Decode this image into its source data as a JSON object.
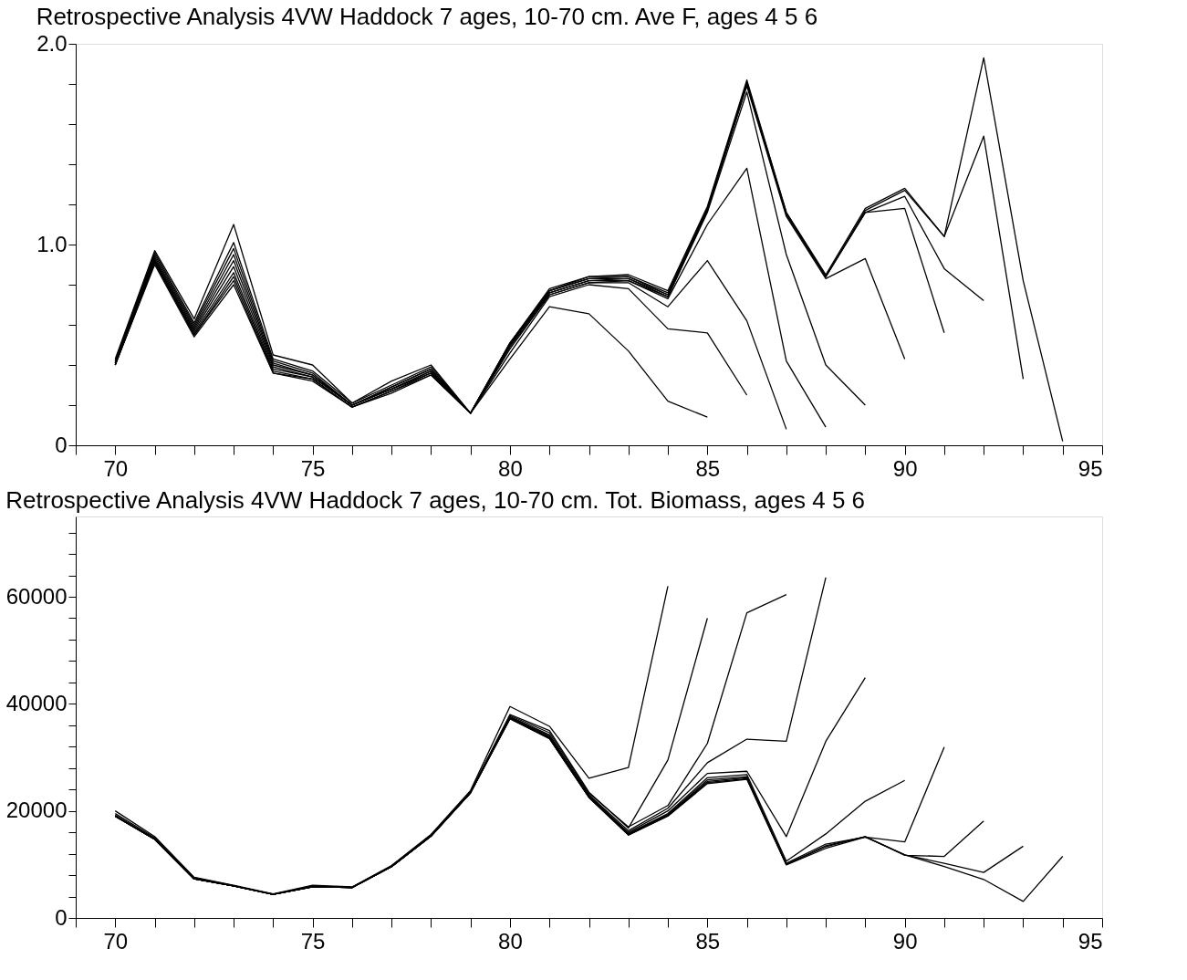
{
  "chart_data": [
    {
      "type": "line",
      "title": "Retrospective Analysis 4VW Haddock 7 ages, 10-70 cm. Ave F, ages 4 5 6",
      "x": [
        70,
        71,
        72,
        73,
        74,
        75,
        76,
        77,
        78,
        79,
        80,
        81,
        82,
        83,
        84,
        85,
        86,
        87,
        88,
        89,
        90,
        91,
        92,
        93,
        94
      ],
      "series": [
        {
          "color": "#000000",
          "values": [
            0.43,
            0.97,
            0.63,
            1.1,
            0.45,
            0.4,
            0.21,
            0.32,
            0.4,
            0.16,
            0.43,
            0.69,
            0.655,
            0.47,
            0.22,
            0.14,
            null,
            null,
            null,
            null,
            null,
            null,
            null,
            null,
            null
          ]
        },
        {
          "color": "#000000",
          "values": [
            0.42,
            0.96,
            0.61,
            1.01,
            0.43,
            0.37,
            0.21,
            0.3,
            0.39,
            0.16,
            0.46,
            0.74,
            0.8,
            0.78,
            0.58,
            0.56,
            0.25,
            null,
            null,
            null,
            null,
            null,
            null,
            null,
            null
          ]
        },
        {
          "color": "#000000",
          "values": [
            0.42,
            0.95,
            0.6,
            0.98,
            0.42,
            0.36,
            0.2,
            0.29,
            0.38,
            0.16,
            0.48,
            0.75,
            0.81,
            0.81,
            0.69,
            0.92,
            0.62,
            0.08,
            null,
            null,
            null,
            null,
            null,
            null,
            null
          ]
        },
        {
          "color": "#000000",
          "values": [
            0.41,
            0.94,
            0.59,
            0.95,
            0.41,
            0.35,
            0.2,
            0.29,
            0.38,
            0.16,
            0.49,
            0.75,
            0.81,
            0.82,
            0.73,
            1.1,
            1.38,
            0.42,
            0.09,
            null,
            null,
            null,
            null,
            null,
            null
          ]
        },
        {
          "color": "#000000",
          "values": [
            0.41,
            0.93,
            0.58,
            0.92,
            0.4,
            0.35,
            0.2,
            0.28,
            0.37,
            0.16,
            0.5,
            0.76,
            0.82,
            0.82,
            0.74,
            1.16,
            1.76,
            0.95,
            0.4,
            0.2,
            null,
            null,
            null,
            null,
            null
          ]
        },
        {
          "color": "#000000",
          "values": [
            0.41,
            0.92,
            0.57,
            0.89,
            0.39,
            0.34,
            0.2,
            0.28,
            0.37,
            0.16,
            0.5,
            0.76,
            0.82,
            0.83,
            0.74,
            1.17,
            1.79,
            1.14,
            0.83,
            0.93,
            0.43,
            null,
            null,
            null,
            null
          ]
        },
        {
          "color": "#000000",
          "values": [
            0.4,
            0.92,
            0.56,
            0.86,
            0.38,
            0.34,
            0.2,
            0.28,
            0.36,
            0.16,
            0.5,
            0.77,
            0.83,
            0.83,
            0.75,
            1.17,
            1.8,
            1.15,
            0.84,
            1.16,
            1.18,
            0.56,
            null,
            null,
            null
          ]
        },
        {
          "color": "#000000",
          "values": [
            0.4,
            0.91,
            0.55,
            0.84,
            0.37,
            0.33,
            0.19,
            0.27,
            0.36,
            0.16,
            0.51,
            0.77,
            0.83,
            0.84,
            0.75,
            1.18,
            1.8,
            1.15,
            0.84,
            1.16,
            1.24,
            0.88,
            0.72,
            null,
            null
          ]
        },
        {
          "color": "#000000",
          "values": [
            0.4,
            0.91,
            0.55,
            0.82,
            0.36,
            0.33,
            0.19,
            0.27,
            0.35,
            0.16,
            0.51,
            0.77,
            0.84,
            0.84,
            0.76,
            1.18,
            1.81,
            1.16,
            0.84,
            1.17,
            1.27,
            1.04,
            1.54,
            0.33,
            null
          ]
        },
        {
          "color": "#000000",
          "values": [
            0.4,
            0.9,
            0.54,
            0.8,
            0.36,
            0.32,
            0.19,
            0.26,
            0.35,
            0.16,
            0.51,
            0.78,
            0.84,
            0.85,
            0.77,
            1.19,
            1.82,
            1.16,
            0.85,
            1.18,
            1.28,
            1.04,
            1.93,
            0.82,
            0.02
          ]
        }
      ],
      "xlim": [
        69,
        95
      ],
      "xticks": [
        {
          "value": 69,
          "label": null
        },
        70,
        {
          "value": 71,
          "label": null
        },
        {
          "value": 72,
          "label": null
        },
        {
          "value": 73,
          "label": null
        },
        {
          "value": 74,
          "label": null
        },
        75,
        {
          "value": 76,
          "label": null
        },
        {
          "value": 77,
          "label": null
        },
        {
          "value": 78,
          "label": null
        },
        {
          "value": 79,
          "label": null
        },
        80,
        {
          "value": 81,
          "label": null
        },
        {
          "value": 82,
          "label": null
        },
        {
          "value": 83,
          "label": null
        },
        {
          "value": 84,
          "label": null
        },
        85,
        {
          "value": 86,
          "label": null
        },
        {
          "value": 87,
          "label": null
        },
        {
          "value": 88,
          "label": null
        },
        {
          "value": 89,
          "label": null
        },
        90,
        {
          "value": 91,
          "label": null
        },
        {
          "value": 92,
          "label": null
        },
        {
          "value": 93,
          "label": null
        },
        {
          "value": 94,
          "label": null
        },
        95
      ],
      "ylim": [
        0,
        2.0
      ],
      "yticks": [
        0,
        {
          "value": 0.2,
          "label": null
        },
        {
          "value": 0.4,
          "label": null
        },
        {
          "value": 0.6,
          "label": null
        },
        {
          "value": 0.8,
          "label": null
        },
        {
          "value": 1.0,
          "label": "1.0"
        },
        {
          "value": 1.2,
          "label": null
        },
        {
          "value": 1.4,
          "label": null
        },
        {
          "value": 1.6,
          "label": null
        },
        {
          "value": 1.8,
          "label": null
        },
        {
          "value": 2.0,
          "label": "2.0"
        }
      ],
      "grid": false,
      "legend": false,
      "marker": "none",
      "line_style": "solid"
    },
    {
      "type": "line",
      "title": "Retrospective Analysis 4VW Haddock 7 ages, 10-70 cm. Tot. Biomass, ages 4 5 6",
      "x": [
        70,
        71,
        72,
        73,
        74,
        75,
        76,
        77,
        78,
        79,
        80,
        81,
        82,
        83,
        84,
        85,
        86,
        87,
        88,
        89,
        90,
        91,
        92,
        93,
        94
      ],
      "series": [
        {
          "color": "#000000",
          "values": [
            20000,
            15200,
            7600,
            6100,
            4500,
            6100,
            5800,
            9800,
            15600,
            23800,
            39500,
            35800,
            26100,
            28100,
            62000,
            null,
            null,
            null,
            null,
            null,
            null,
            null,
            null,
            null,
            null
          ]
        },
        {
          "color": "#000000",
          "values": [
            19500,
            15000,
            7500,
            6000,
            4400,
            6000,
            5700,
            9700,
            15500,
            23600,
            38000,
            35000,
            23500,
            16800,
            29500,
            56000,
            null,
            null,
            null,
            null,
            null,
            null,
            null,
            null,
            null
          ]
        },
        {
          "color": "#000000",
          "values": [
            19200,
            14800,
            7400,
            6000,
            4400,
            5900,
            5700,
            9600,
            15400,
            23500,
            37800,
            34600,
            23300,
            17000,
            21000,
            32600,
            57000,
            60400,
            null,
            null,
            null,
            null,
            null,
            null,
            null
          ]
        },
        {
          "color": "#000000",
          "values": [
            19000,
            14700,
            7300,
            6000,
            4400,
            5800,
            5700,
            9600,
            15300,
            23400,
            37600,
            34200,
            23000,
            16300,
            20500,
            29000,
            33400,
            33000,
            63600,
            null,
            null,
            null,
            null,
            null,
            null
          ]
        },
        {
          "color": "#000000",
          "values": [
            19000,
            14700,
            7300,
            6000,
            4400,
            5800,
            5700,
            9600,
            15300,
            23400,
            37500,
            34000,
            22800,
            16000,
            20000,
            27000,
            27400,
            15200,
            33000,
            44900,
            null,
            null,
            null,
            null,
            null
          ]
        },
        {
          "color": "#000000",
          "values": [
            19000,
            14700,
            7300,
            6000,
            4400,
            5800,
            5700,
            9600,
            15300,
            23400,
            37400,
            33800,
            22700,
            15800,
            19500,
            26200,
            26800,
            10600,
            15700,
            21800,
            25700,
            null,
            null,
            null,
            null
          ]
        },
        {
          "color": "#000000",
          "values": [
            19000,
            14700,
            7300,
            6000,
            4400,
            5800,
            5700,
            9600,
            15300,
            23400,
            37300,
            33600,
            22600,
            15700,
            19300,
            25800,
            26400,
            10200,
            13800,
            15100,
            14200,
            31900,
            null,
            null,
            null
          ]
        },
        {
          "color": "#000000",
          "values": [
            19000,
            14700,
            7300,
            6000,
            4400,
            5800,
            5700,
            9600,
            15300,
            23400,
            37300,
            33600,
            22600,
            15600,
            19200,
            25500,
            26200,
            10000,
            13500,
            15200,
            11700,
            11500,
            18100,
            null,
            null
          ]
        },
        {
          "color": "#000000",
          "values": [
            19000,
            14700,
            7300,
            6000,
            4400,
            5800,
            5700,
            9600,
            15300,
            23400,
            37200,
            33500,
            22500,
            15500,
            19100,
            25300,
            26000,
            10000,
            13300,
            15200,
            11800,
            10200,
            8500,
            13400,
            null
          ]
        },
        {
          "color": "#000000",
          "values": [
            19000,
            14700,
            7300,
            6000,
            4400,
            5800,
            5700,
            9600,
            15300,
            23400,
            37200,
            33500,
            22500,
            15500,
            19000,
            25100,
            25900,
            9900,
            13000,
            15100,
            11800,
            9600,
            7200,
            3100,
            11500
          ]
        }
      ],
      "xlim": [
        69,
        95
      ],
      "xticks": [
        {
          "value": 69,
          "label": null
        },
        70,
        {
          "value": 71,
          "label": null
        },
        {
          "value": 72,
          "label": null
        },
        {
          "value": 73,
          "label": null
        },
        {
          "value": 74,
          "label": null
        },
        75,
        {
          "value": 76,
          "label": null
        },
        {
          "value": 77,
          "label": null
        },
        {
          "value": 78,
          "label": null
        },
        {
          "value": 79,
          "label": null
        },
        80,
        {
          "value": 81,
          "label": null
        },
        {
          "value": 82,
          "label": null
        },
        {
          "value": 83,
          "label": null
        },
        {
          "value": 84,
          "label": null
        },
        85,
        {
          "value": 86,
          "label": null
        },
        {
          "value": 87,
          "label": null
        },
        {
          "value": 88,
          "label": null
        },
        {
          "value": 89,
          "label": null
        },
        90,
        {
          "value": 91,
          "label": null
        },
        {
          "value": 92,
          "label": null
        },
        {
          "value": 93,
          "label": null
        },
        {
          "value": 94,
          "label": null
        },
        95
      ],
      "ylim": [
        0,
        75000
      ],
      "yticks": [
        0,
        {
          "value": 4000,
          "label": null
        },
        {
          "value": 8000,
          "label": null
        },
        {
          "value": 12000,
          "label": null
        },
        {
          "value": 16000,
          "label": null
        },
        20000,
        {
          "value": 24000,
          "label": null
        },
        {
          "value": 28000,
          "label": null
        },
        {
          "value": 32000,
          "label": null
        },
        {
          "value": 36000,
          "label": null
        },
        40000,
        {
          "value": 44000,
          "label": null
        },
        {
          "value": 48000,
          "label": null
        },
        {
          "value": 52000,
          "label": null
        },
        {
          "value": 56000,
          "label": null
        },
        60000,
        {
          "value": 64000,
          "label": null
        },
        {
          "value": 68000,
          "label": null
        },
        {
          "value": 72000,
          "label": null
        }
      ],
      "grid": false,
      "legend": false,
      "marker": "none",
      "line_style": "solid"
    }
  ]
}
